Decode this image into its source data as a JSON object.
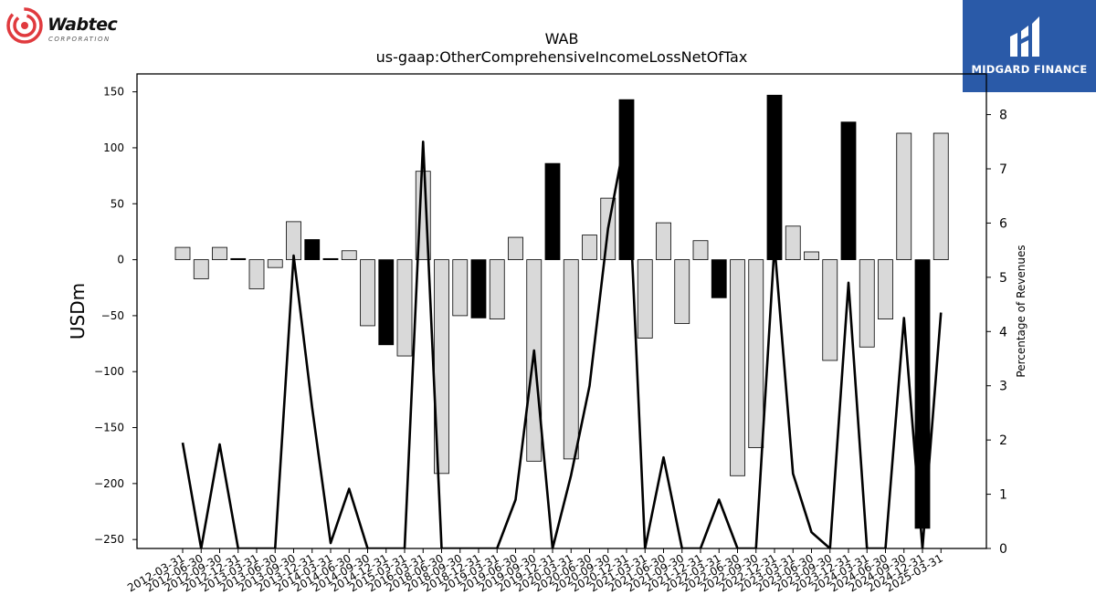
{
  "logos": {
    "left": {
      "name": "Wabtec",
      "subtitle": "CORPORATION",
      "color": "#e03a3e"
    },
    "right": {
      "name": "MIDGARD FINANCE",
      "background": "#2a5aa8"
    }
  },
  "chart_data": {
    "type": "bar",
    "title": "WAB",
    "subtitle": "us-gaap:OtherComprehensiveIncomeLossNetOfTax",
    "ylabel": "USDm",
    "y2label": "Percentage of Revenues",
    "ylim": [
      -258,
      166
    ],
    "y2lim": [
      0,
      8.75
    ],
    "yticks": [
      150,
      100,
      50,
      0,
      -50,
      -100,
      -150,
      -200,
      -250
    ],
    "y2ticks": [
      0,
      1,
      2,
      3,
      4,
      5,
      6,
      7,
      8
    ],
    "categories": [
      "2012-03-31",
      "2012-06-30",
      "2012-09-30",
      "2012-12-31",
      "2013-03-31",
      "2013-06-30",
      "2013-09-30",
      "2013-12-31",
      "2014-03-31",
      "2014-06-30",
      "2014-09-30",
      "2014-12-31",
      "2015-03-31",
      "2016-03-31",
      "2018-06-30",
      "2018-09-30",
      "2018-12-31",
      "2019-03-31",
      "2019-06-30",
      "2019-09-30",
      "2019-12-31",
      "2020-03-31",
      "2020-06-30",
      "2020-09-30",
      "2020-12-31",
      "2021-03-31",
      "2021-06-30",
      "2021-09-30",
      "2021-12-31",
      "2022-03-31",
      "2022-06-30",
      "2022-09-30",
      "2022-12-31",
      "2023-03-31",
      "2023-06-30",
      "2023-09-30",
      "2023-12-31",
      "2024-03-31",
      "2024-06-30",
      "2024-09-30",
      "2024-12-31",
      "2025-03-31"
    ],
    "series": [
      {
        "type": "bar",
        "values": [
          11,
          -17,
          11,
          1,
          -26,
          -7,
          34,
          18,
          1,
          8,
          -59,
          -76,
          -86,
          79,
          -191,
          -50,
          -52,
          -53,
          20,
          -180,
          86,
          -178,
          22,
          55,
          143,
          -70,
          33,
          -57,
          17,
          -34,
          -193,
          -168,
          147,
          30,
          7,
          -90,
          123,
          -78,
          -53,
          113,
          -240,
          113
        ],
        "highlight": [
          false,
          false,
          false,
          true,
          false,
          false,
          false,
          true,
          true,
          false,
          false,
          true,
          false,
          false,
          false,
          false,
          true,
          false,
          false,
          false,
          true,
          false,
          false,
          false,
          true,
          false,
          false,
          false,
          false,
          true,
          false,
          false,
          true,
          false,
          false,
          false,
          true,
          false,
          false,
          false,
          true,
          false
        ],
        "colors": {
          "normal": "#d9d9d9",
          "highlight": "#000000"
        }
      },
      {
        "type": "line",
        "axis": "right",
        "color": "#000000",
        "values": [
          1.95,
          0,
          1.92,
          0,
          0,
          0,
          5.4,
          2.6,
          0.1,
          1.1,
          0,
          0,
          0,
          7.5,
          0,
          0,
          0,
          0,
          0.9,
          3.65,
          0,
          1.35,
          3.0,
          5.9,
          7.7,
          0,
          1.68,
          0,
          0,
          0.9,
          0,
          0,
          5.6,
          1.38,
          0.3,
          0,
          4.9,
          0,
          0,
          4.25,
          0,
          4.35
        ]
      }
    ]
  }
}
